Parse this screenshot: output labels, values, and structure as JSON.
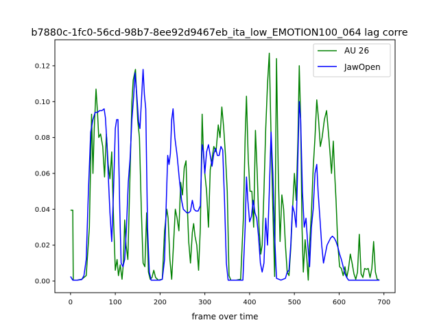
{
  "chart_data": {
    "type": "line",
    "title": "b7880c-1fc0-56cd-98b7-8ee92d9467eb_ita_low_EMOTION100_064  lag corre",
    "xlabel": "frame over time",
    "ylabel": "",
    "xlim": [
      -35,
      725
    ],
    "ylim": [
      -0.0065,
      0.1345
    ],
    "xticks": [
      0,
      100,
      200,
      300,
      400,
      500,
      600,
      700
    ],
    "xtick_labels": [
      "0",
      "100",
      "200",
      "300",
      "400",
      "500",
      "600",
      "700"
    ],
    "yticks": [
      0.0,
      0.02,
      0.04,
      0.06,
      0.08,
      0.1,
      0.12
    ],
    "ytick_labels": [
      "0.00",
      "0.02",
      "0.04",
      "0.06",
      "0.08",
      "0.10",
      "0.12"
    ],
    "grid": false,
    "legend_position": "top-right",
    "series": [
      {
        "name": "AU 26",
        "color": "#008000",
        "points": [
          [
            0,
            0.0395
          ],
          [
            5,
            0.0395
          ],
          [
            6,
            0.0005
          ],
          [
            15,
            0.0005
          ],
          [
            25,
            0.001
          ],
          [
            35,
            0.003
          ],
          [
            42,
            0.03
          ],
          [
            47,
            0.093
          ],
          [
            50,
            0.06
          ],
          [
            53,
            0.085
          ],
          [
            57,
            0.107
          ],
          [
            60,
            0.095
          ],
          [
            63,
            0.08
          ],
          [
            67,
            0.082
          ],
          [
            72,
            0.075
          ],
          [
            76,
            0.058
          ],
          [
            80,
            0.082
          ],
          [
            84,
            0.065
          ],
          [
            88,
            0.057
          ],
          [
            92,
            0.072
          ],
          [
            96,
            0.035
          ],
          [
            100,
            0.006
          ],
          [
            104,
            0.012
          ],
          [
            107,
            0.003
          ],
          [
            111,
            0.009
          ],
          [
            115,
            0.001
          ],
          [
            118,
            0.01
          ],
          [
            121,
            0.034
          ],
          [
            124,
            0.02
          ],
          [
            128,
            0.012
          ],
          [
            133,
            0.06
          ],
          [
            137,
            0.1
          ],
          [
            140,
            0.112
          ],
          [
            145,
            0.118
          ],
          [
            150,
            0.09
          ],
          [
            154,
            0.08
          ],
          [
            158,
            0.04
          ],
          [
            162,
            0.01
          ],
          [
            166,
            0.008
          ],
          [
            170,
            0.038
          ],
          [
            174,
            0.005
          ],
          [
            178,
            0.001
          ],
          [
            182,
            0.002
          ],
          [
            186,
            0.006
          ],
          [
            190,
            0.002
          ],
          [
            196,
            0.0005
          ],
          [
            205,
            0.001
          ],
          [
            210,
            0.028
          ],
          [
            215,
            0.04
          ],
          [
            218,
            0.035
          ],
          [
            222,
            0.012
          ],
          [
            226,
            0.001
          ],
          [
            230,
            0.02
          ],
          [
            234,
            0.04
          ],
          [
            238,
            0.035
          ],
          [
            242,
            0.028
          ],
          [
            246,
            0.055
          ],
          [
            250,
            0.048
          ],
          [
            254,
            0.063
          ],
          [
            258,
            0.067
          ],
          [
            261,
            0.04
          ],
          [
            264,
            0.022
          ],
          [
            268,
            0.01
          ],
          [
            272,
            0.027
          ],
          [
            275,
            0.032
          ],
          [
            278,
            0.025
          ],
          [
            282,
            0.02
          ],
          [
            286,
            0.006
          ],
          [
            290,
            0.03
          ],
          [
            294,
            0.093
          ],
          [
            297,
            0.07
          ],
          [
            300,
            0.06
          ],
          [
            304,
            0.05
          ],
          [
            308,
            0.03
          ],
          [
            312,
            0.062
          ],
          [
            316,
            0.068
          ],
          [
            320,
            0.075
          ],
          [
            325,
            0.072
          ],
          [
            330,
            0.087
          ],
          [
            334,
            0.08
          ],
          [
            338,
            0.097
          ],
          [
            342,
            0.086
          ],
          [
            346,
            0.07
          ],
          [
            350,
            0.05
          ],
          [
            354,
            0.003
          ],
          [
            358,
            0.0005
          ],
          [
            370,
            0.0005
          ],
          [
            380,
            0.001
          ],
          [
            386,
            0.035
          ],
          [
            390,
            0.08
          ],
          [
            393,
            0.103
          ],
          [
            397,
            0.068
          ],
          [
            401,
            0.05
          ],
          [
            405,
            0.05
          ],
          [
            409,
            0.03
          ],
          [
            413,
            0.084
          ],
          [
            417,
            0.06
          ],
          [
            421,
            0.03
          ],
          [
            425,
            0.015
          ],
          [
            428,
            0.02
          ],
          [
            432,
            0.05
          ],
          [
            436,
            0.085
          ],
          [
            440,
            0.11
          ],
          [
            444,
            0.127
          ],
          [
            448,
            0.08
          ],
          [
            452,
            0.04
          ],
          [
            456,
            0.0025
          ],
          [
            460,
            0.124
          ],
          [
            464,
            0.06
          ],
          [
            468,
            0.022
          ],
          [
            472,
            0.048
          ],
          [
            476,
            0.04
          ],
          [
            480,
            0.02
          ],
          [
            484,
            0.005
          ],
          [
            488,
            0.003
          ],
          [
            492,
            0.018
          ],
          [
            496,
            0.04
          ],
          [
            500,
            0.06
          ],
          [
            504,
            0.045
          ],
          [
            508,
            0.08
          ],
          [
            511,
            0.12
          ],
          [
            514,
            0.09
          ],
          [
            517,
            0.03
          ],
          [
            520,
            0.005
          ],
          [
            524,
            0.023
          ],
          [
            528,
            0.012
          ],
          [
            531,
            0.0005
          ],
          [
            534,
            0.02
          ],
          [
            538,
            0.038
          ],
          [
            542,
            0.063
          ],
          [
            546,
            0.08
          ],
          [
            550,
            0.101
          ],
          [
            554,
            0.09
          ],
          [
            558,
            0.075
          ],
          [
            562,
            0.08
          ],
          [
            567,
            0.09
          ],
          [
            572,
            0.095
          ],
          [
            577,
            0.08
          ],
          [
            580,
            0.07
          ],
          [
            583,
            0.06
          ],
          [
            587,
            0.078
          ],
          [
            590,
            0.06
          ],
          [
            593,
            0.045
          ],
          [
            597,
            0.02
          ],
          [
            601,
            0.008
          ],
          [
            605,
            0.007
          ],
          [
            609,
            0.003
          ],
          [
            613,
            0.008
          ],
          [
            617,
            0.002
          ],
          [
            621,
            0.007
          ],
          [
            625,
            0.015
          ],
          [
            629,
            0.01
          ],
          [
            633,
            0.004
          ],
          [
            637,
            0.001
          ],
          [
            641,
            0.005
          ],
          [
            645,
            0.026
          ],
          [
            649,
            0.004
          ],
          [
            653,
            0.002
          ],
          [
            657,
            0.007
          ],
          [
            661,
            0.0065
          ],
          [
            665,
            0.007
          ],
          [
            669,
            0.002
          ],
          [
            673,
            0.007
          ],
          [
            677,
            0.022
          ],
          [
            681,
            0.005
          ],
          [
            685,
            0.001
          ],
          [
            690,
            0.0005
          ]
        ]
      },
      {
        "name": "JawOpen",
        "color": "#0000ff",
        "points": [
          [
            0,
            0.0025
          ],
          [
            5,
            0.0005
          ],
          [
            15,
            0.0005
          ],
          [
            25,
            0.0008
          ],
          [
            30,
            0.003
          ],
          [
            35,
            0.012
          ],
          [
            40,
            0.05
          ],
          [
            45,
            0.083
          ],
          [
            50,
            0.09
          ],
          [
            55,
            0.094
          ],
          [
            60,
            0.094
          ],
          [
            65,
            0.095
          ],
          [
            70,
            0.095
          ],
          [
            75,
            0.096
          ],
          [
            78,
            0.091
          ],
          [
            81,
            0.078
          ],
          [
            84,
            0.06
          ],
          [
            88,
            0.038
          ],
          [
            92,
            0.022
          ],
          [
            96,
            0.05
          ],
          [
            100,
            0.085
          ],
          [
            103,
            0.09
          ],
          [
            106,
            0.09
          ],
          [
            110,
            0.04
          ],
          [
            113,
            0.01
          ],
          [
            117,
            0.008
          ],
          [
            121,
            0.012
          ],
          [
            125,
            0.03
          ],
          [
            129,
            0.055
          ],
          [
            133,
            0.068
          ],
          [
            137,
            0.09
          ],
          [
            141,
            0.103
          ],
          [
            144,
            0.116
          ],
          [
            148,
            0.104
          ],
          [
            152,
            0.089
          ],
          [
            155,
            0.085
          ],
          [
            158,
            0.099
          ],
          [
            162,
            0.118
          ],
          [
            165,
            0.104
          ],
          [
            168,
            0.096
          ],
          [
            172,
            0.03
          ],
          [
            176,
            0.005
          ],
          [
            180,
            0.0005
          ],
          [
            200,
            0.0005
          ],
          [
            205,
            0.001
          ],
          [
            210,
            0.012
          ],
          [
            214,
            0.045
          ],
          [
            217,
            0.07
          ],
          [
            220,
            0.065
          ],
          [
            223,
            0.071
          ],
          [
            226,
            0.09
          ],
          [
            229,
            0.096
          ],
          [
            233,
            0.08
          ],
          [
            238,
            0.07
          ],
          [
            243,
            0.057
          ],
          [
            248,
            0.045
          ],
          [
            252,
            0.04
          ],
          [
            256,
            0.039
          ],
          [
            260,
            0.038
          ],
          [
            264,
            0.038
          ],
          [
            268,
            0.039
          ],
          [
            272,
            0.045
          ],
          [
            276,
            0.04
          ],
          [
            280,
            0.039
          ],
          [
            285,
            0.039
          ],
          [
            290,
            0.042
          ],
          [
            294,
            0.076
          ],
          [
            297,
            0.072
          ],
          [
            300,
            0.06
          ],
          [
            304,
            0.072
          ],
          [
            308,
            0.076
          ],
          [
            312,
            0.07
          ],
          [
            316,
            0.064
          ],
          [
            320,
            0.071
          ],
          [
            324,
            0.074
          ],
          [
            328,
            0.07
          ],
          [
            332,
            0.07
          ],
          [
            336,
            0.075
          ],
          [
            340,
            0.073
          ],
          [
            344,
            0.045
          ],
          [
            348,
            0.01
          ],
          [
            352,
            0.0005
          ],
          [
            385,
            0.0005
          ],
          [
            390,
            0.03
          ],
          [
            393,
            0.058
          ],
          [
            396,
            0.045
          ],
          [
            400,
            0.033
          ],
          [
            404,
            0.036
          ],
          [
            408,
            0.045
          ],
          [
            412,
            0.038
          ],
          [
            416,
            0.035
          ],
          [
            420,
            0.025
          ],
          [
            424,
            0.01
          ],
          [
            428,
            0.005
          ],
          [
            432,
            0.01
          ],
          [
            436,
            0.035
          ],
          [
            440,
            0.02
          ],
          [
            444,
            0.05
          ],
          [
            448,
            0.083
          ],
          [
            452,
            0.06
          ],
          [
            456,
            0.025
          ],
          [
            460,
            0.0015
          ],
          [
            470,
            0.0005
          ],
          [
            480,
            0.0015
          ],
          [
            484,
            0.005
          ],
          [
            488,
            0.006
          ],
          [
            492,
            0.02
          ],
          [
            496,
            0.042
          ],
          [
            500,
            0.038
          ],
          [
            504,
            0.03
          ],
          [
            508,
            0.07
          ],
          [
            511,
            0.1
          ],
          [
            514,
            0.09
          ],
          [
            518,
            0.05
          ],
          [
            522,
            0.03
          ],
          [
            526,
            0.035
          ],
          [
            530,
            0.02
          ],
          [
            534,
            0.008
          ],
          [
            538,
            0.03
          ],
          [
            542,
            0.04
          ],
          [
            546,
            0.06
          ],
          [
            550,
            0.065
          ],
          [
            553,
            0.05
          ],
          [
            557,
            0.035
          ],
          [
            561,
            0.02
          ],
          [
            565,
            0.01
          ],
          [
            569,
            0.015
          ],
          [
            573,
            0.02
          ],
          [
            577,
            0.022
          ],
          [
            581,
            0.024
          ],
          [
            585,
            0.025
          ],
          [
            589,
            0.024
          ],
          [
            593,
            0.022
          ],
          [
            597,
            0.019
          ],
          [
            601,
            0.015
          ],
          [
            605,
            0.012
          ],
          [
            609,
            0.008
          ],
          [
            613,
            0.004
          ],
          [
            617,
            0.002
          ],
          [
            621,
            0.0005
          ],
          [
            690,
            0.0005
          ]
        ]
      }
    ]
  }
}
